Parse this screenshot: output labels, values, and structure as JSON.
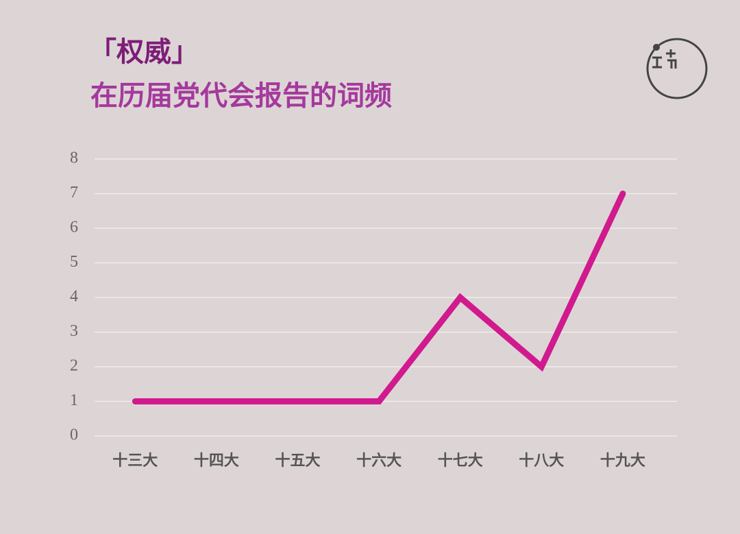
{
  "chart_data": {
    "type": "line",
    "title": "「权威」",
    "subtitle": "在历届党代会报告的词频",
    "categories": [
      "十三大",
      "十四大",
      "十五大",
      "十六大",
      "十七大",
      "十八大",
      "十九大"
    ],
    "series": [
      {
        "name": "权威",
        "color": "#d01a8e",
        "values": [
          1,
          1,
          1,
          1,
          4,
          2,
          7
        ]
      }
    ],
    "ylim": [
      0,
      8
    ],
    "yticks": [
      0,
      1,
      2,
      3,
      4,
      5,
      6,
      7,
      8
    ],
    "grid": true
  }
}
